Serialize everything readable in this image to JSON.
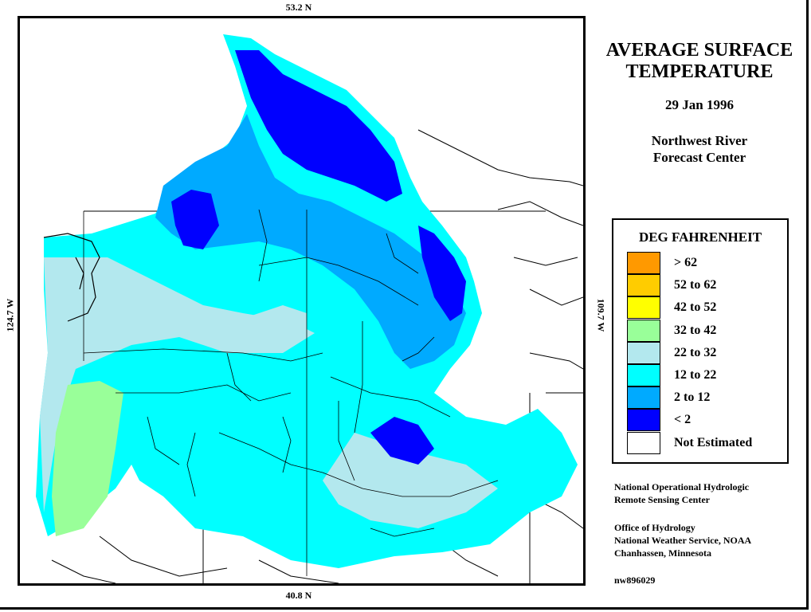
{
  "map": {
    "lat_top": "53.2 N",
    "lat_bottom": "40.8 N",
    "lon_left": "124.7 W",
    "lon_right": "109.7 W"
  },
  "header": {
    "title_line1": "AVERAGE SURFACE",
    "title_line2": "TEMPERATURE",
    "date": "29 Jan 1996",
    "agency_line1": "Northwest River",
    "agency_line2": "Forecast Center"
  },
  "legend": {
    "title": "DEG FAHRENHEIT",
    "items": [
      {
        "label": "> 62",
        "color": "#ff9900"
      },
      {
        "label": "52 to 62",
        "color": "#ffcc00"
      },
      {
        "label": "42 to 52",
        "color": "#ffff00"
      },
      {
        "label": "32 to 42",
        "color": "#99ff99"
      },
      {
        "label": "22 to 32",
        "color": "#b3e8ee"
      },
      {
        "label": "12 to 22",
        "color": "#00ffff"
      },
      {
        "label": "2 to 12",
        "color": "#00aaff"
      },
      {
        "label": "< 2",
        "color": "#0000ff"
      },
      {
        "label": "Not Estimated",
        "color": "#ffffff"
      }
    ]
  },
  "credits": {
    "line1": "National Operational Hydrologic",
    "line2": "Remote Sensing Center",
    "line3": "Office of Hydrology",
    "line4": "National Weather Service, NOAA",
    "line5": "Chanhassen, Minnesota",
    "code": "nw896029"
  }
}
